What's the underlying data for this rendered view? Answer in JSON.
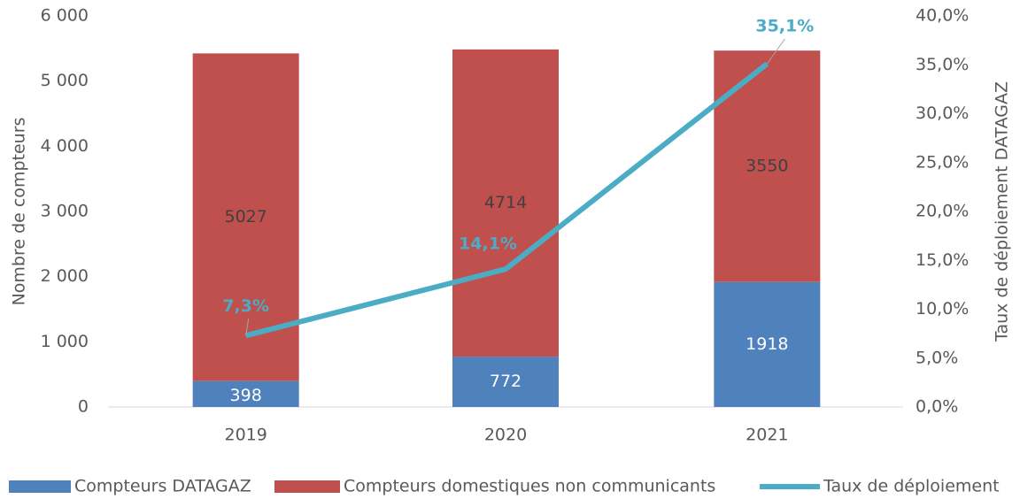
{
  "chart_data": {
    "type": "bar-line",
    "categories": [
      "2019",
      "2020",
      "2021"
    ],
    "series": [
      {
        "name": "Compteurs DATAGAZ",
        "type": "bar",
        "color": "#4f81bd",
        "values": [
          398,
          772,
          1918
        ]
      },
      {
        "name": "Compteurs domestiques non communicants",
        "type": "bar",
        "color": "#c0504d",
        "values": [
          5027,
          4714,
          3550
        ]
      },
      {
        "name": "Taux de déploiement",
        "type": "line",
        "axis": "y2",
        "color": "#4bacc6",
        "values": [
          7.3,
          14.1,
          35.1
        ],
        "value_labels": [
          "7,3%",
          "14,1%",
          "35,1%"
        ]
      }
    ],
    "stacked": true,
    "ylabel": "Nombre de compteurs",
    "y2label": "Taux de déploiement DATAGAZ",
    "ylim": [
      0,
      6000
    ],
    "yticks": [
      0,
      {
        "value": 1000,
        "label": "1 000"
      },
      {
        "value": 2000,
        "label": "2 000"
      },
      {
        "value": 3000,
        "label": "3 000"
      },
      {
        "value": 4000,
        "label": "4 000"
      },
      {
        "value": 5000,
        "label": "5 000"
      },
      {
        "value": 6000,
        "label": "6 000"
      }
    ],
    "y2lim": [
      0,
      40
    ],
    "y2ticks": [
      {
        "value": 0,
        "label": "0,0%"
      },
      {
        "value": 5,
        "label": "5,0%"
      },
      {
        "value": 10,
        "label": "10,0%"
      },
      {
        "value": 15,
        "label": "15,0%"
      },
      {
        "value": 20,
        "label": "20,0%"
      },
      {
        "value": 25,
        "label": "25,0%"
      },
      {
        "value": 30,
        "label": "30,0%"
      },
      {
        "value": 35,
        "label": "35,0%"
      },
      {
        "value": 40,
        "label": "40,0%"
      }
    ],
    "legend": "bottom",
    "grid": false
  }
}
